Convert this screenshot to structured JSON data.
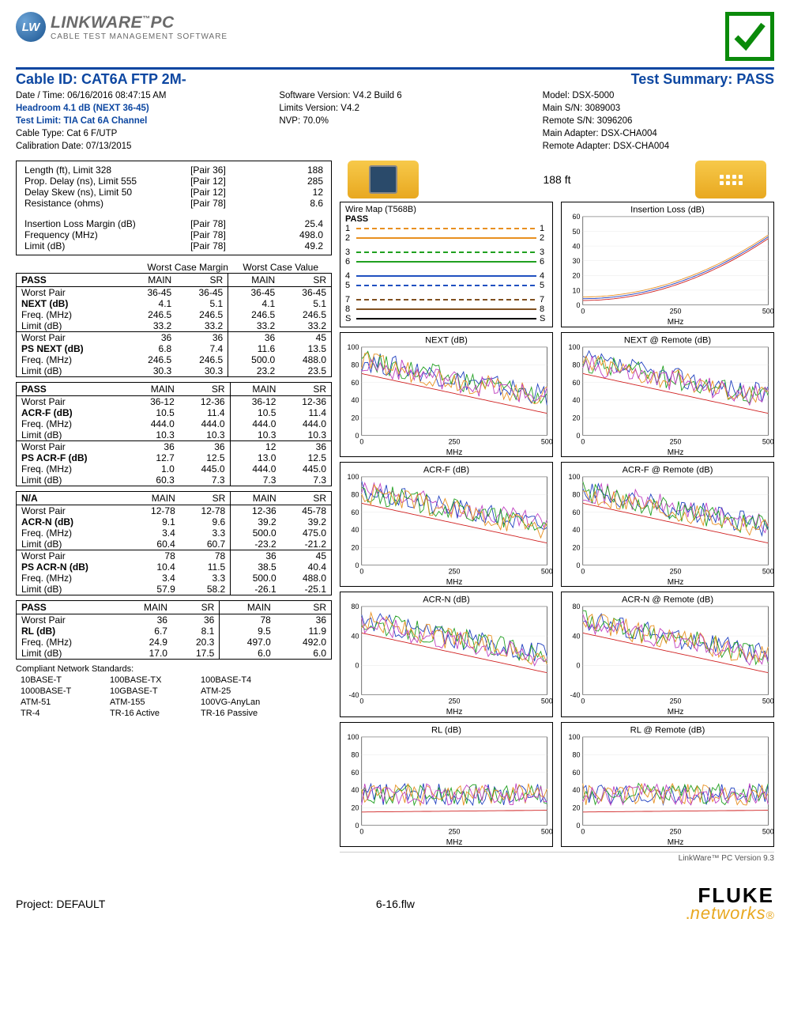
{
  "logo": {
    "badge": "LW",
    "title": "LINKWARE",
    "tm": "™",
    "suffix": "PC",
    "sub": "CABLE TEST MANAGEMENT SOFTWARE"
  },
  "title": {
    "left": "Cable ID: CAT6A FTP 2M-",
    "right": "Test Summary: PASS"
  },
  "meta": {
    "col1": [
      {
        "t": "Date / Time: 06/16/2016  08:47:15 AM",
        "b": false
      },
      {
        "t": "Headroom 4.1 dB (NEXT 36-45)",
        "b": true
      },
      {
        "t": "Test Limit: TIA Cat 6A Channel",
        "b": true
      },
      {
        "t": "Cable Type: Cat 6 F/UTP",
        "b": false
      },
      {
        "t": "Calibration Date: 07/13/2015",
        "b": false
      }
    ],
    "col2": [
      {
        "t": "Software Version: V4.2 Build 6",
        "b": false
      },
      {
        "t": "Limits Version: V4.2",
        "b": false
      },
      {
        "t": "NVP: 70.0%",
        "b": false
      }
    ],
    "col3": [
      {
        "t": "Model: DSX-5000",
        "b": false
      },
      {
        "t": "Main S/N: 3089003",
        "b": false
      },
      {
        "t": "Remote S/N: 3096206",
        "b": false
      },
      {
        "t": "Main Adapter: DSX-CHA004",
        "b": false
      },
      {
        "t": "Remote Adapter: DSX-CHA004",
        "b": false
      }
    ]
  },
  "basics": {
    "rows1": [
      [
        "Length (ft), Limit 328",
        "[Pair 36]",
        "188"
      ],
      [
        "Prop. Delay (ns), Limit 555",
        "[Pair 12]",
        "285"
      ],
      [
        "Delay Skew (ns), Limit 50",
        "[Pair 12]",
        "12"
      ],
      [
        "Resistance (ohms)",
        "[Pair 78]",
        "8.6"
      ]
    ],
    "rows2": [
      [
        "Insertion Loss Margin (dB)",
        "[Pair 78]",
        "25.4"
      ],
      [
        "Frequency (MHz)",
        "[Pair 78]",
        "498.0"
      ],
      [
        "Limit (dB)",
        "[Pair 78]",
        "49.2"
      ]
    ]
  },
  "wc_header": [
    "",
    "Worst Case Margin",
    "Worst Case Value"
  ],
  "blocks": [
    {
      "head": [
        "PASS",
        "MAIN",
        "SR",
        "MAIN",
        "SR"
      ],
      "groups": [
        [
          [
            "Worst Pair",
            "36-45",
            "36-45",
            "36-45",
            "36-45"
          ],
          [
            "NEXT (dB)",
            "4.1",
            "5.1",
            "4.1",
            "5.1",
            true
          ],
          [
            "Freq. (MHz)",
            "246.5",
            "246.5",
            "246.5",
            "246.5"
          ],
          [
            "Limit (dB)",
            "33.2",
            "33.2",
            "33.2",
            "33.2"
          ]
        ],
        [
          [
            "Worst Pair",
            "36",
            "36",
            "36",
            "45"
          ],
          [
            "PS NEXT (dB)",
            "6.8",
            "7.4",
            "11.6",
            "13.5",
            true
          ],
          [
            "Freq. (MHz)",
            "246.5",
            "246.5",
            "500.0",
            "488.0"
          ],
          [
            "Limit (dB)",
            "30.3",
            "30.3",
            "23.2",
            "23.5"
          ]
        ]
      ]
    },
    {
      "head": [
        "PASS",
        "MAIN",
        "SR",
        "MAIN",
        "SR"
      ],
      "groups": [
        [
          [
            "Worst Pair",
            "36-12",
            "12-36",
            "36-12",
            "12-36"
          ],
          [
            "ACR-F (dB)",
            "10.5",
            "11.4",
            "10.5",
            "11.4",
            true
          ],
          [
            "Freq. (MHz)",
            "444.0",
            "444.0",
            "444.0",
            "444.0"
          ],
          [
            "Limit (dB)",
            "10.3",
            "10.3",
            "10.3",
            "10.3"
          ]
        ],
        [
          [
            "Worst Pair",
            "36",
            "36",
            "12",
            "36"
          ],
          [
            "PS ACR-F (dB)",
            "12.7",
            "12.5",
            "13.0",
            "12.5",
            true
          ],
          [
            "Freq. (MHz)",
            "1.0",
            "445.0",
            "444.0",
            "445.0"
          ],
          [
            "Limit (dB)",
            "60.3",
            "7.3",
            "7.3",
            "7.3"
          ]
        ]
      ]
    },
    {
      "head": [
        "N/A",
        "MAIN",
        "SR",
        "MAIN",
        "SR"
      ],
      "groups": [
        [
          [
            "Worst Pair",
            "12-78",
            "12-78",
            "12-36",
            "45-78"
          ],
          [
            "ACR-N (dB)",
            "9.1",
            "9.6",
            "39.2",
            "39.2",
            true
          ],
          [
            "Freq. (MHz)",
            "3.4",
            "3.3",
            "500.0",
            "475.0"
          ],
          [
            "Limit (dB)",
            "60.4",
            "60.7",
            "-23.2",
            "-21.2"
          ]
        ],
        [
          [
            "Worst Pair",
            "78",
            "78",
            "36",
            "45"
          ],
          [
            "PS ACR-N (dB)",
            "10.4",
            "11.5",
            "38.5",
            "40.4",
            true
          ],
          [
            "Freq. (MHz)",
            "3.4",
            "3.3",
            "500.0",
            "488.0"
          ],
          [
            "Limit (dB)",
            "57.9",
            "58.2",
            "-26.1",
            "-25.1"
          ]
        ]
      ]
    },
    {
      "head": [
        "PASS",
        "MAIN",
        "SR",
        "MAIN",
        "SR"
      ],
      "groups": [
        [
          [
            "Worst Pair",
            "36",
            "36",
            "78",
            "36"
          ],
          [
            "RL (dB)",
            "6.7",
            "8.1",
            "9.5",
            "11.9",
            true
          ],
          [
            "Freq. (MHz)",
            "24.9",
            "20.3",
            "497.0",
            "492.0"
          ],
          [
            "Limit (dB)",
            "17.0",
            "17.5",
            "6.0",
            "6.0"
          ]
        ]
      ]
    }
  ],
  "compliant": {
    "title": "Compliant Network Standards:",
    "rows": [
      [
        "10BASE-T",
        "100BASE-TX",
        "100BASE-T4"
      ],
      [
        "1000BASE-T",
        "10GBASE-T",
        "ATM-25"
      ],
      [
        "ATM-51",
        "ATM-155",
        "100VG-AnyLan"
      ],
      [
        "TR-4",
        "TR-16 Active",
        "TR-16 Passive"
      ]
    ]
  },
  "length_label": "188 ft",
  "wiremap": {
    "title": "Wire Map (T568B)",
    "status": "PASS",
    "pairs": [
      {
        "l": "1",
        "r": "1",
        "c": "#e89020",
        "dash": true
      },
      {
        "l": "2",
        "r": "2",
        "c": "#e89020",
        "dash": false
      },
      {
        "l": "3",
        "r": "3",
        "c": "#20a020",
        "dash": true
      },
      {
        "l": "6",
        "r": "6",
        "c": "#20a020",
        "dash": false
      },
      {
        "l": "4",
        "r": "4",
        "c": "#2050c0",
        "dash": false
      },
      {
        "l": "5",
        "r": "5",
        "c": "#2050c0",
        "dash": true
      },
      {
        "l": "7",
        "r": "7",
        "c": "#805020",
        "dash": true
      },
      {
        "l": "8",
        "r": "8",
        "c": "#805020",
        "dash": false
      },
      {
        "l": "S",
        "r": "S",
        "c": "#000",
        "dash": false
      }
    ]
  },
  "charts": [
    {
      "title": "Insertion Loss (dB)",
      "xmax": 500,
      "xticks": [
        "0",
        "250",
        "500"
      ],
      "ymin": 0,
      "ymax": 60,
      "yticks": [
        "0",
        "10",
        "20",
        "30",
        "40",
        "50",
        "60"
      ],
      "pattern": "curve-up",
      "colors": [
        "#d02020",
        "#2040c0",
        "#e89020"
      ],
      "xlabel": "MHz"
    },
    {
      "title": "NEXT (dB)",
      "xmax": 500,
      "xticks": [
        "0",
        "250",
        "500"
      ],
      "ymin": 0,
      "ymax": 100,
      "yticks": [
        "0",
        "20",
        "40",
        "60",
        "80",
        "100"
      ],
      "pattern": "noisy-down",
      "colors": [
        "#2040c0",
        "#20a020",
        "#e89020",
        "#c040c0",
        "#d02020"
      ],
      "xlabel": "MHz"
    },
    {
      "title": "NEXT @ Remote (dB)",
      "xmax": 500,
      "xticks": [
        "0",
        "250",
        "500"
      ],
      "ymin": 0,
      "ymax": 100,
      "yticks": [
        "0",
        "20",
        "40",
        "60",
        "80",
        "100"
      ],
      "pattern": "noisy-down",
      "colors": [
        "#2040c0",
        "#20a020",
        "#e89020",
        "#c040c0",
        "#d02020"
      ],
      "xlabel": "MHz"
    },
    {
      "title": "ACR-F (dB)",
      "xmax": 500,
      "xticks": [
        "0",
        "250",
        "500"
      ],
      "ymin": 0,
      "ymax": 100,
      "yticks": [
        "0",
        "20",
        "40",
        "60",
        "80",
        "100"
      ],
      "pattern": "noisy-down",
      "colors": [
        "#c040c0",
        "#2040c0",
        "#20a020",
        "#e89020",
        "#d02020"
      ],
      "xlabel": "MHz"
    },
    {
      "title": "ACR-F @ Remote (dB)",
      "xmax": 500,
      "xticks": [
        "0",
        "250",
        "500"
      ],
      "ymin": 0,
      "ymax": 100,
      "yticks": [
        "0",
        "20",
        "40",
        "60",
        "80",
        "100"
      ],
      "pattern": "noisy-down",
      "colors": [
        "#c040c0",
        "#2040c0",
        "#20a020",
        "#e89020",
        "#d02020"
      ],
      "xlabel": "MHz"
    },
    {
      "title": "ACR-N (dB)",
      "xmax": 500,
      "xticks": [
        "0",
        "250",
        "500"
      ],
      "ymin": -40,
      "ymax": 80,
      "yticks": [
        "-40",
        "0",
        "40",
        "80"
      ],
      "pattern": "noisy-down",
      "colors": [
        "#2040c0",
        "#20a020",
        "#e89020",
        "#c040c0",
        "#d02020"
      ],
      "xlabel": "MHz"
    },
    {
      "title": "ACR-N @ Remote (dB)",
      "xmax": 500,
      "xticks": [
        "0",
        "250",
        "500"
      ],
      "ymin": -40,
      "ymax": 80,
      "yticks": [
        "-40",
        "0",
        "40",
        "80"
      ],
      "pattern": "noisy-down",
      "colors": [
        "#2040c0",
        "#20a020",
        "#e89020",
        "#c040c0",
        "#d02020"
      ],
      "xlabel": "MHz"
    },
    {
      "title": "RL (dB)",
      "xmax": 500,
      "xticks": [
        "0",
        "250",
        "500"
      ],
      "ymin": 0,
      "ymax": 100,
      "yticks": [
        "0",
        "20",
        "40",
        "60",
        "80",
        "100"
      ],
      "pattern": "noisy-mid",
      "colors": [
        "#2040c0",
        "#20a020",
        "#e89020",
        "#c040c0",
        "#d02020"
      ],
      "xlabel": "MHz"
    },
    {
      "title": "RL @ Remote (dB)",
      "xmax": 500,
      "xticks": [
        "0",
        "250",
        "500"
      ],
      "ymin": 0,
      "ymax": 100,
      "yticks": [
        "0",
        "20",
        "40",
        "60",
        "80",
        "100"
      ],
      "pattern": "noisy-mid",
      "colors": [
        "#2040c0",
        "#20a020",
        "#e89020",
        "#c040c0",
        "#d02020"
      ],
      "xlabel": "MHz"
    }
  ],
  "footer_note": "LinkWare™ PC Version 9.3",
  "footer": {
    "project": "Project: DEFAULT",
    "file": "6-16.flw",
    "brand1": "FLUKE",
    "brand2": "networks",
    "dot": "."
  }
}
